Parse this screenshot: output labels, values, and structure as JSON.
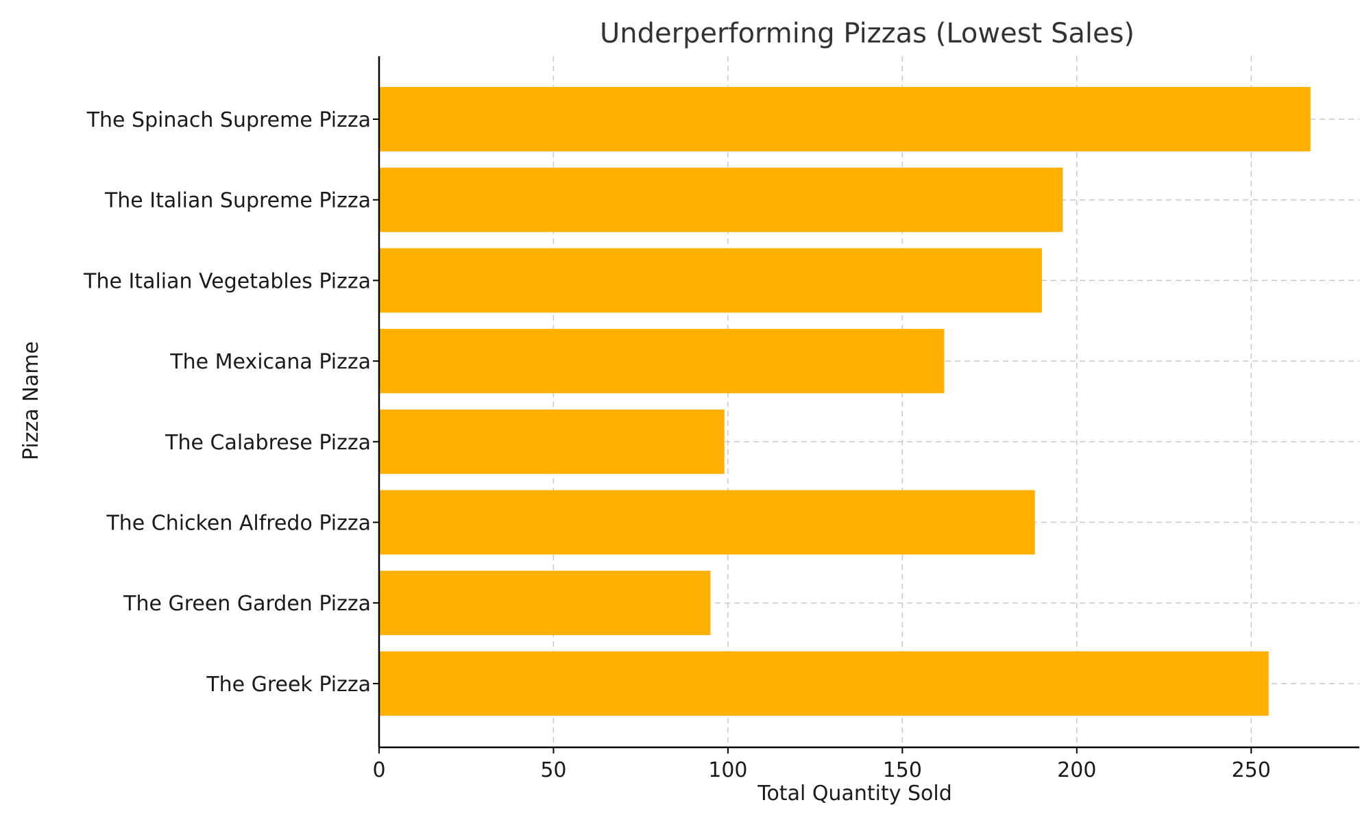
{
  "chart_data": {
    "type": "bar",
    "orientation": "horizontal",
    "title": "Underperforming Pizzas (Lowest Sales)",
    "xlabel": "Total Quantity Sold",
    "ylabel": "Pizza Name",
    "categories": [
      "The Spinach Supreme Pizza",
      "The Italian Supreme Pizza",
      "The Italian Vegetables Pizza",
      "The Mexicana Pizza",
      "The Calabrese Pizza",
      "The Chicken Alfredo Pizza",
      "The Green Garden Pizza",
      "The Greek Pizza"
    ],
    "values": [
      267,
      196,
      190,
      162,
      99,
      188,
      95,
      255
    ],
    "xlim": [
      0,
      281
    ],
    "xticks": [
      0,
      50,
      100,
      150,
      200,
      250
    ],
    "xtick_labels": [
      "0",
      "50",
      "100",
      "150",
      "200",
      "250"
    ],
    "bar_color": "#FFB000",
    "grid": true,
    "grid_style": "dashed"
  }
}
